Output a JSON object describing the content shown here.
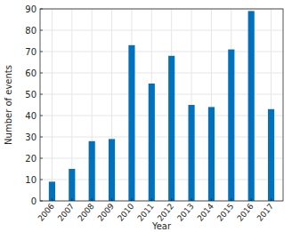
{
  "chart_data": {
    "type": "bar",
    "x_label": "Year",
    "y_label": "Number of events",
    "categories": [
      "2006",
      "2007",
      "2008",
      "2009",
      "2010",
      "2011",
      "2012",
      "2013",
      "2014",
      "2015",
      "2016",
      "2017"
    ],
    "values": [
      9,
      15,
      28,
      29,
      73,
      55,
      68,
      45,
      44,
      71,
      89,
      43
    ],
    "color": "#0072bd",
    "ylim": [
      0,
      90
    ],
    "yticks": [
      0,
      10,
      20,
      30,
      40,
      50,
      60,
      70,
      80,
      90
    ],
    "grid": true
  }
}
